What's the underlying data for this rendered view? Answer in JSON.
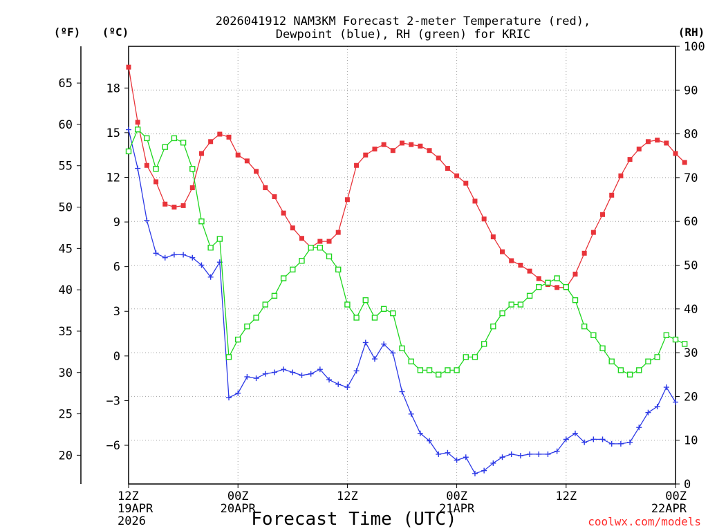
{
  "chart_data": {
    "type": "line",
    "title_lines": [
      "2026041912 NAM3KM Forecast 2-meter Temperature (red),",
      "Dewpoint (blue), RH (green) for KRIC"
    ],
    "xlabel": "Forecast Time (UTC)",
    "credit": "coolwx.com/models",
    "units": {
      "fahrenheit": "(ºF)",
      "celsius": "(ºC)",
      "rh": "(RH)"
    },
    "colors": {
      "temperature": "#e8343a",
      "dewpoint": "#2d3ae6",
      "rh": "#1fd61f",
      "grid": "#a0a0a0"
    },
    "x_hours_range": [
      0,
      60
    ],
    "x_ticks": [
      {
        "hour": 0,
        "line1": "12Z",
        "line2": "19APR",
        "line3": "2026"
      },
      {
        "hour": 12,
        "line1": "00Z",
        "line2": "20APR",
        "line3": ""
      },
      {
        "hour": 24,
        "line1": "12Z",
        "line2": "",
        "line3": ""
      },
      {
        "hour": 36,
        "line1": "00Z",
        "line2": "21APR",
        "line3": ""
      },
      {
        "hour": 48,
        "line1": "12Z",
        "line2": "",
        "line3": ""
      },
      {
        "hour": 60,
        "line1": "00Z",
        "line2": "22APR",
        "line3": ""
      }
    ],
    "celsius_axis": {
      "range": [
        -8.6,
        20.8
      ],
      "ticks": [
        18,
        15,
        12,
        9,
        6,
        3,
        0,
        -3,
        -6
      ],
      "tick_labels": [
        "18",
        "15",
        "12",
        "9",
        "6",
        "3",
        "0",
        "−3",
        "−6"
      ]
    },
    "fahrenheit_axis": {
      "ticks": [
        65,
        60,
        55,
        50,
        45,
        40,
        35,
        30,
        25,
        20
      ],
      "tick_labels": [
        "65",
        "60",
        "55",
        "50",
        "45",
        "40",
        "35",
        "30",
        "25",
        "20"
      ]
    },
    "rh_axis": {
      "range": [
        0,
        100
      ],
      "ticks": [
        100,
        90,
        80,
        70,
        60,
        50,
        40,
        30,
        20,
        10,
        0
      ],
      "tick_labels": [
        "100",
        "90",
        "80",
        "70",
        "60",
        "50",
        "40",
        "30",
        "20",
        "10",
        "0"
      ]
    },
    "series": [
      {
        "name": "Temperature (°C)",
        "axis": "celsius",
        "marker": "filled-square",
        "points": [
          [
            0,
            19.4
          ],
          [
            1,
            15.7
          ],
          [
            2,
            12.8
          ],
          [
            3,
            11.7
          ],
          [
            4,
            10.2
          ],
          [
            5,
            10.0
          ],
          [
            6,
            10.1
          ],
          [
            7,
            11.3
          ],
          [
            8,
            13.6
          ],
          [
            9,
            14.4
          ],
          [
            10,
            14.9
          ],
          [
            11,
            14.7
          ],
          [
            12,
            13.5
          ],
          [
            13,
            13.1
          ],
          [
            14,
            12.4
          ],
          [
            15,
            11.3
          ],
          [
            16,
            10.7
          ],
          [
            17,
            9.6
          ],
          [
            18,
            8.6
          ],
          [
            19,
            7.9
          ],
          [
            20,
            7.3
          ],
          [
            21,
            7.7
          ],
          [
            22,
            7.7
          ],
          [
            23,
            8.3
          ],
          [
            24,
            10.5
          ],
          [
            25,
            12.8
          ],
          [
            26,
            13.5
          ],
          [
            27,
            13.9
          ],
          [
            28,
            14.2
          ],
          [
            29,
            13.8
          ],
          [
            30,
            14.3
          ],
          [
            31,
            14.2
          ],
          [
            32,
            14.1
          ],
          [
            33,
            13.8
          ],
          [
            34,
            13.3
          ],
          [
            35,
            12.6
          ],
          [
            36,
            12.1
          ],
          [
            37,
            11.6
          ],
          [
            38,
            10.4
          ],
          [
            39,
            9.2
          ],
          [
            40,
            8.0
          ],
          [
            41,
            7.0
          ],
          [
            42,
            6.4
          ],
          [
            43,
            6.1
          ],
          [
            44,
            5.7
          ],
          [
            45,
            5.2
          ],
          [
            46,
            4.8
          ],
          [
            47,
            4.6
          ],
          [
            48,
            4.6
          ],
          [
            49,
            5.5
          ],
          [
            50,
            6.9
          ],
          [
            51,
            8.3
          ],
          [
            52,
            9.5
          ],
          [
            53,
            10.8
          ],
          [
            54,
            12.1
          ],
          [
            55,
            13.2
          ],
          [
            56,
            13.9
          ],
          [
            57,
            14.4
          ],
          [
            58,
            14.5
          ],
          [
            59,
            14.3
          ],
          [
            60,
            13.6
          ],
          [
            61,
            13.0
          ]
        ]
      },
      {
        "name": "Dewpoint (°C)",
        "axis": "celsius",
        "marker": "plus",
        "points": [
          [
            0,
            15.2
          ],
          [
            1,
            12.6
          ],
          [
            2,
            9.1
          ],
          [
            3,
            6.9
          ],
          [
            4,
            6.6
          ],
          [
            5,
            6.8
          ],
          [
            6,
            6.8
          ],
          [
            7,
            6.6
          ],
          [
            8,
            6.1
          ],
          [
            9,
            5.3
          ],
          [
            10,
            6.3
          ],
          [
            11,
            -2.8
          ],
          [
            12,
            -2.5
          ],
          [
            13,
            -1.4
          ],
          [
            14,
            -1.5
          ],
          [
            15,
            -1.2
          ],
          [
            16,
            -1.1
          ],
          [
            17,
            -0.9
          ],
          [
            18,
            -1.1
          ],
          [
            19,
            -1.3
          ],
          [
            20,
            -1.2
          ],
          [
            21,
            -0.9
          ],
          [
            22,
            -1.6
          ],
          [
            23,
            -1.9
          ],
          [
            24,
            -2.1
          ],
          [
            25,
            -1.0
          ],
          [
            26,
            0.9
          ],
          [
            27,
            -0.2
          ],
          [
            28,
            0.8
          ],
          [
            29,
            0.2
          ],
          [
            30,
            -2.4
          ],
          [
            31,
            -3.9
          ],
          [
            32,
            -5.2
          ],
          [
            33,
            -5.7
          ],
          [
            34,
            -6.6
          ],
          [
            35,
            -6.5
          ],
          [
            36,
            -7.0
          ],
          [
            37,
            -6.8
          ],
          [
            38,
            -7.9
          ],
          [
            39,
            -7.7
          ],
          [
            40,
            -7.2
          ],
          [
            41,
            -6.8
          ],
          [
            42,
            -6.6
          ],
          [
            43,
            -6.7
          ],
          [
            44,
            -6.6
          ],
          [
            45,
            -6.6
          ],
          [
            46,
            -6.6
          ],
          [
            47,
            -6.4
          ],
          [
            48,
            -5.6
          ],
          [
            49,
            -5.2
          ],
          [
            50,
            -5.8
          ],
          [
            51,
            -5.6
          ],
          [
            52,
            -5.6
          ],
          [
            53,
            -5.9
          ],
          [
            54,
            -5.9
          ],
          [
            55,
            -5.8
          ],
          [
            56,
            -4.8
          ],
          [
            57,
            -3.8
          ],
          [
            58,
            -3.4
          ],
          [
            59,
            -2.1
          ],
          [
            60,
            -3.1
          ]
        ]
      },
      {
        "name": "RH (%)",
        "axis": "rh",
        "marker": "open-square",
        "points": [
          [
            0,
            76
          ],
          [
            1,
            81
          ],
          [
            2,
            79
          ],
          [
            3,
            72
          ],
          [
            4,
            77
          ],
          [
            5,
            79
          ],
          [
            6,
            78
          ],
          [
            7,
            72
          ],
          [
            8,
            60
          ],
          [
            9,
            54
          ],
          [
            10,
            56
          ],
          [
            11,
            29
          ],
          [
            12,
            33
          ],
          [
            13,
            36
          ],
          [
            14,
            38
          ],
          [
            15,
            41
          ],
          [
            16,
            43
          ],
          [
            17,
            47
          ],
          [
            18,
            49
          ],
          [
            19,
            51
          ],
          [
            20,
            54
          ],
          [
            21,
            54
          ],
          [
            22,
            52
          ],
          [
            23,
            49
          ],
          [
            24,
            41
          ],
          [
            25,
            38
          ],
          [
            26,
            42
          ],
          [
            27,
            38
          ],
          [
            28,
            40
          ],
          [
            29,
            39
          ],
          [
            30,
            31
          ],
          [
            31,
            28
          ],
          [
            32,
            26
          ],
          [
            33,
            26
          ],
          [
            34,
            25
          ],
          [
            35,
            26
          ],
          [
            36,
            26
          ],
          [
            37,
            29
          ],
          [
            38,
            29
          ],
          [
            39,
            32
          ],
          [
            40,
            36
          ],
          [
            41,
            39
          ],
          [
            42,
            41
          ],
          [
            43,
            41
          ],
          [
            44,
            43
          ],
          [
            45,
            45
          ],
          [
            46,
            46
          ],
          [
            47,
            47
          ],
          [
            48,
            45
          ],
          [
            49,
            42
          ],
          [
            50,
            36
          ],
          [
            51,
            34
          ],
          [
            52,
            31
          ],
          [
            53,
            28
          ],
          [
            54,
            26
          ],
          [
            55,
            25
          ],
          [
            56,
            26
          ],
          [
            57,
            28
          ],
          [
            58,
            29
          ],
          [
            59,
            34
          ],
          [
            60,
            33
          ],
          [
            61,
            32
          ]
        ]
      }
    ]
  }
}
